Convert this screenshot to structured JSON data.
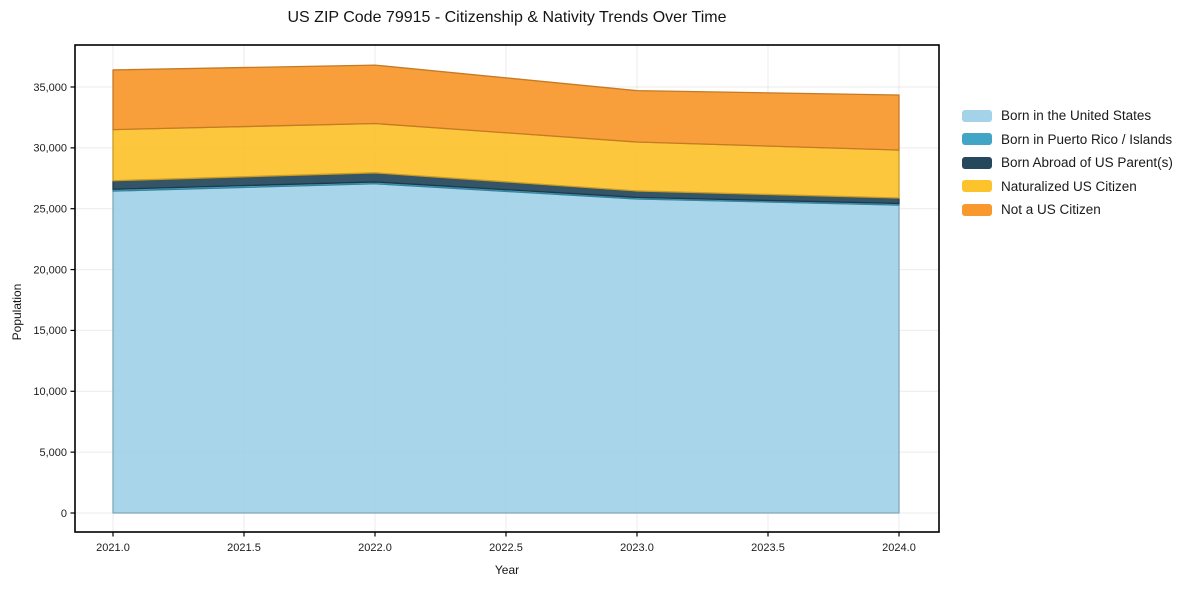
{
  "title": "US ZIP Code 79915 - Citizenship & Nativity Trends Over Time",
  "chart_data": {
    "type": "area",
    "stacked": true,
    "title": "US ZIP Code 79915 - Citizenship & Nativity Trends Over Time",
    "xlabel": "Year",
    "ylabel": "Population",
    "x": [
      2021,
      2022,
      2023,
      2024
    ],
    "series": [
      {
        "name": "Born in the United States",
        "color": "#a3d2e9",
        "values": [
          26450,
          27050,
          25800,
          25300
        ]
      },
      {
        "name": "Born in Puerto Rico / Islands",
        "color": "#42a5c5",
        "values": [
          150,
          150,
          130,
          130
        ]
      },
      {
        "name": "Born Abroad of US Parent(s)",
        "color": "#25485d",
        "values": [
          700,
          750,
          530,
          450
        ]
      },
      {
        "name": "Naturalized US Citizen",
        "color": "#fcc32d",
        "values": [
          4200,
          4050,
          4020,
          3940
        ]
      },
      {
        "name": "Not a US Citizen",
        "color": "#f8982d",
        "values": [
          4900,
          4800,
          4220,
          4520
        ]
      }
    ],
    "stacked_totals": [
      36400,
      36800,
      34700,
      34340
    ],
    "x_ticks": {
      "labels": [
        "2021.0",
        "2021.5",
        "2022.0",
        "2022.5",
        "2023.0",
        "2023.5",
        "2024.0"
      ],
      "values": [
        2021,
        2021.5,
        2022,
        2022.5,
        2023,
        2023.5,
        2024
      ]
    },
    "y_ticks": {
      "labels": [
        "0",
        "5,000",
        "10,000",
        "15,000",
        "20,000",
        "25,000",
        "30,000",
        "35,000"
      ],
      "values": [
        0,
        5000,
        10000,
        15000,
        20000,
        25000,
        30000,
        35000
      ]
    },
    "xlim": [
      2021,
      2024
    ],
    "ylim": [
      0,
      35000
    ],
    "grid": true,
    "legend_position": "right",
    "style": {
      "background": "#ffffff",
      "grid_color": "#000000",
      "grid_opacity": 0.08,
      "frame_color": "#000000",
      "tick_label_color": "#1c1c1c",
      "text_color": "#1a1a1a",
      "fill_opacity": 0.93
    }
  }
}
